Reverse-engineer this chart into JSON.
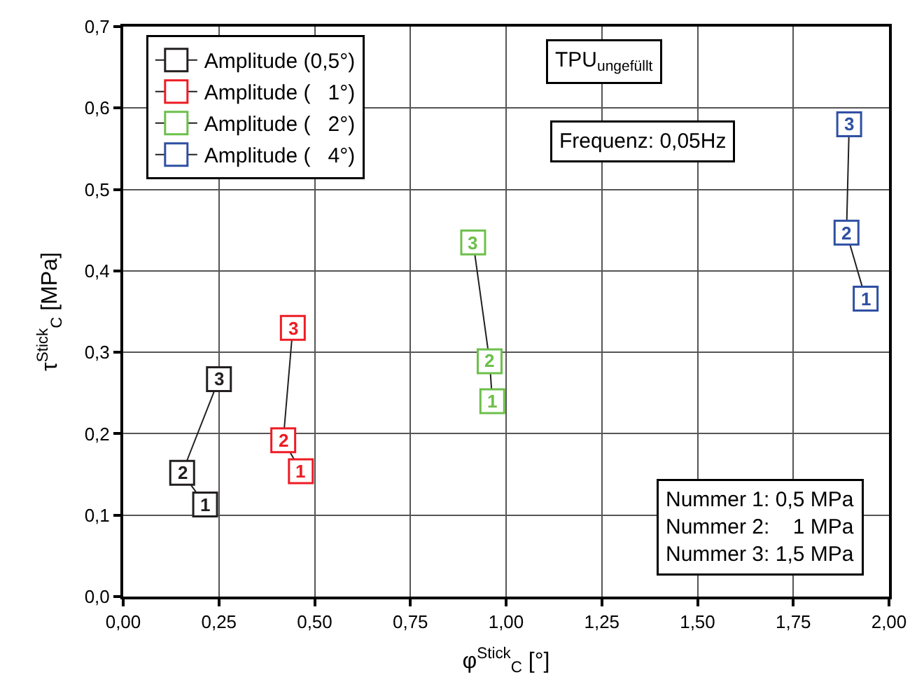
{
  "chart_data": {
    "type": "line",
    "xlabel": "φ$^{Stick}$$_{C}$ [°]",
    "ylabel": "τ$^{Stick}$$_{C}$ [MPa]",
    "series": [
      {
        "name": "Amplitude (0,5°)",
        "color": "#231f20",
        "x": [
          0.214,
          0.154,
          0.25
        ],
        "values": [
          0.113,
          0.152,
          0.267
        ]
      },
      {
        "name": "Amplitude (   1°)",
        "color": "#ed1c24",
        "x": [
          0.464,
          0.418,
          0.443
        ],
        "values": [
          0.154,
          0.192,
          0.33
        ]
      },
      {
        "name": "Amplitude (   2°)",
        "color": "#6cc04a",
        "x": [
          0.964,
          0.957,
          0.914
        ],
        "values": [
          0.24,
          0.289,
          0.435
        ]
      },
      {
        "name": "Amplitude (   4°)",
        "color": "#2e4fa3",
        "x": [
          1.939,
          1.889,
          1.896
        ],
        "values": [
          0.366,
          0.447,
          0.58
        ]
      }
    ],
    "xlim": [
      0,
      2
    ],
    "ylim": [
      0,
      0.7
    ],
    "xticks": [
      {
        "value": 0,
        "label": "0,00"
      },
      {
        "value": 0.25,
        "label": "0,25"
      },
      {
        "value": 0.5,
        "label": "0,50"
      },
      {
        "value": 0.75,
        "label": "0,75"
      },
      {
        "value": 1,
        "label": "1,00"
      },
      {
        "value": 1.25,
        "label": "1,25"
      },
      {
        "value": 1.5,
        "label": "1,50"
      },
      {
        "value": 1.75,
        "label": "1,75"
      },
      {
        "value": 2,
        "label": "2,00"
      }
    ],
    "yticks": [
      {
        "value": 0,
        "label": "0,0"
      },
      {
        "value": 0.1,
        "label": "0,1"
      },
      {
        "value": 0.2,
        "label": "0,2"
      },
      {
        "value": 0.3,
        "label": "0,3"
      },
      {
        "value": 0.4,
        "label": "0,4"
      },
      {
        "value": 0.5,
        "label": "0,5"
      },
      {
        "value": 0.6,
        "label": "0,6"
      },
      {
        "value": 0.7,
        "label": "0,7"
      }
    ],
    "annotations": [
      "TPU$_{ungefüllt}$",
      "Frequenz: 0,05Hz",
      "Nummer 1: 0,5 MPa\nNummer 2:    1 MPa\nNummer 3: 1,5 MPa",
      {
        "text": "1",
        "x": 0.214,
        "y": 0.113
      },
      {
        "text": "2",
        "x": 0.154,
        "y": 0.152
      },
      {
        "text": "3",
        "x": 0.25,
        "y": 0.267
      },
      {
        "text": "1",
        "x": 0.464,
        "y": 0.154
      },
      {
        "text": "2",
        "x": 0.418,
        "y": 0.192
      },
      {
        "text": "3",
        "x": 0.443,
        "y": 0.33
      },
      {
        "text": "1",
        "x": 0.964,
        "y": 0.24
      },
      {
        "text": "2",
        "x": 0.957,
        "y": 0.289
      },
      {
        "text": "3",
        "x": 0.914,
        "y": 0.435
      },
      {
        "text": "1",
        "x": 1.939,
        "y": 0.366
      },
      {
        "text": "2",
        "x": 1.889,
        "y": 0.447
      },
      {
        "text": "3",
        "x": 1.896,
        "y": 0.58
      }
    ],
    "grid": true,
    "legend": "top left",
    "marker": "square",
    "line_style": "solid"
  }
}
